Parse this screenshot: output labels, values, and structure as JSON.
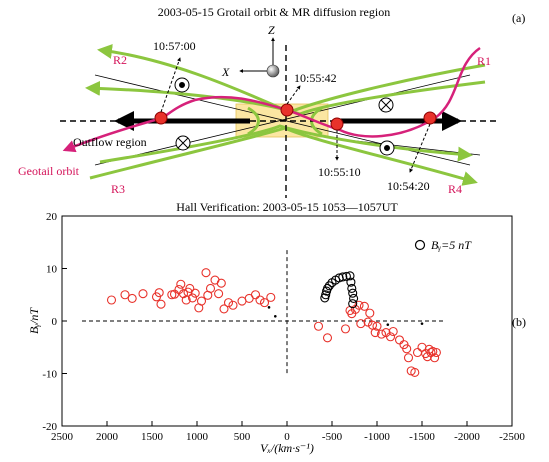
{
  "panel_a": {
    "title": "2003-05-15 Grotail orbit & MR diffusion region",
    "panel_label": "(a)",
    "axis_z": "Z",
    "axis_x": "X",
    "regions": [
      "R1",
      "R2",
      "R3",
      "R4"
    ],
    "times": [
      "10:57:00",
      "10:55:42",
      "10:55:10",
      "10:54:20"
    ],
    "outflow_label": "Outflow region",
    "orbit_label": "Geotail orbit",
    "colors": {
      "orbit": "#d6217a",
      "field_lines": "#8cc63f",
      "diffusion": "#fbe6a2",
      "arrow": "#000000"
    }
  },
  "chart_data": {
    "type": "scatter",
    "title": "Hall Verification: 2003-05-15 1053—1057UT",
    "panel_label": "(b)",
    "xlabel": "Vₓ/(km·s⁻¹)",
    "ylabel": "Bᵧ/nT",
    "xlim": [
      2500,
      -2500
    ],
    "ylim": [
      -20,
      20
    ],
    "x_reversed": true,
    "xticks": [
      2500,
      2000,
      1500,
      1000,
      500,
      0,
      -500,
      -1000,
      -1500,
      -2000,
      -2500
    ],
    "yticks": [
      -20,
      -10,
      0,
      10,
      20
    ],
    "legend": {
      "label": "Bᵧ=5 nT",
      "position": "top-right"
    },
    "series": [
      {
        "marker": "circle",
        "color": "#e8322b",
        "points": [
          [
            1950,
            4.0
          ],
          [
            1800,
            5.0
          ],
          [
            1720,
            4.3
          ],
          [
            1600,
            5.2
          ],
          [
            1450,
            4.6
          ],
          [
            1420,
            5.4
          ],
          [
            1400,
            3.2
          ],
          [
            1280,
            5.0
          ],
          [
            1250,
            5.1
          ],
          [
            1200,
            6.0
          ],
          [
            1180,
            7.0
          ],
          [
            1150,
            5.2
          ],
          [
            1120,
            4.0
          ],
          [
            1100,
            5.5
          ],
          [
            1080,
            6.2
          ],
          [
            1050,
            4.4
          ],
          [
            1020,
            5.3
          ],
          [
            980,
            2.5
          ],
          [
            950,
            3.8
          ],
          [
            900,
            9.2
          ],
          [
            880,
            4.9
          ],
          [
            850,
            6.2
          ],
          [
            800,
            7.8
          ],
          [
            760,
            5.2
          ],
          [
            730,
            7.2
          ],
          [
            700,
            2.3
          ],
          [
            650,
            3.5
          ],
          [
            600,
            3.0
          ],
          [
            500,
            3.8
          ],
          [
            420,
            4.3
          ],
          [
            350,
            5.0
          ],
          [
            300,
            4.0
          ],
          [
            250,
            3.5
          ],
          [
            180,
            4.5
          ]
        ]
      },
      {
        "marker": "circle",
        "color": "#e8322b",
        "points": [
          [
            -350,
            -1.0
          ],
          [
            -450,
            -3.2
          ],
          [
            -650,
            -1.5
          ],
          [
            -700,
            2.0
          ],
          [
            -720,
            1.4
          ],
          [
            -760,
            2.2
          ],
          [
            -800,
            3.0
          ],
          [
            -820,
            -0.5
          ],
          [
            -860,
            2.8
          ],
          [
            -900,
            -0.2
          ],
          [
            -920,
            1.5
          ],
          [
            -950,
            -0.8
          ],
          [
            -980,
            -2.2
          ],
          [
            -1000,
            -1.0
          ],
          [
            -1050,
            -2.5
          ],
          [
            -1100,
            -2.2
          ],
          [
            -1150,
            -3.0
          ],
          [
            -1180,
            -2.0
          ],
          [
            -1250,
            -3.6
          ],
          [
            -1300,
            -4.5
          ],
          [
            -1330,
            -5.3
          ],
          [
            -1350,
            -7.0
          ],
          [
            -1380,
            -9.5
          ],
          [
            -1420,
            -9.8
          ],
          [
            -1450,
            -6.0
          ],
          [
            -1500,
            -5.0
          ],
          [
            -1540,
            -6.2
          ],
          [
            -1560,
            -6.8
          ],
          [
            -1580,
            -5.4
          ],
          [
            -1600,
            -6.0
          ],
          [
            -1620,
            -5.8
          ],
          [
            -1640,
            -7.0
          ],
          [
            -1660,
            -6.0
          ]
        ]
      },
      {
        "marker": "circle",
        "color": "#000000",
        "points": [
          [
            -420,
            4.4
          ],
          [
            -430,
            5.0
          ],
          [
            -440,
            5.7
          ],
          [
            -450,
            6.2
          ],
          [
            -470,
            6.7
          ],
          [
            -500,
            7.3
          ],
          [
            -540,
            7.8
          ],
          [
            -580,
            8.2
          ],
          [
            -620,
            8.4
          ],
          [
            -660,
            8.5
          ],
          [
            -700,
            8.6
          ],
          [
            -710,
            7.4
          ],
          [
            -720,
            6.2
          ],
          [
            -730,
            5.3
          ],
          [
            -740,
            4.3
          ],
          [
            -730,
            3.3
          ]
        ]
      },
      {
        "marker": "dot",
        "color": "#000000",
        "points": [
          [
            200,
            2.6
          ],
          [
            130,
            0.9
          ],
          [
            -1120,
            -0.7
          ],
          [
            -1500,
            -0.5
          ]
        ]
      }
    ]
  }
}
